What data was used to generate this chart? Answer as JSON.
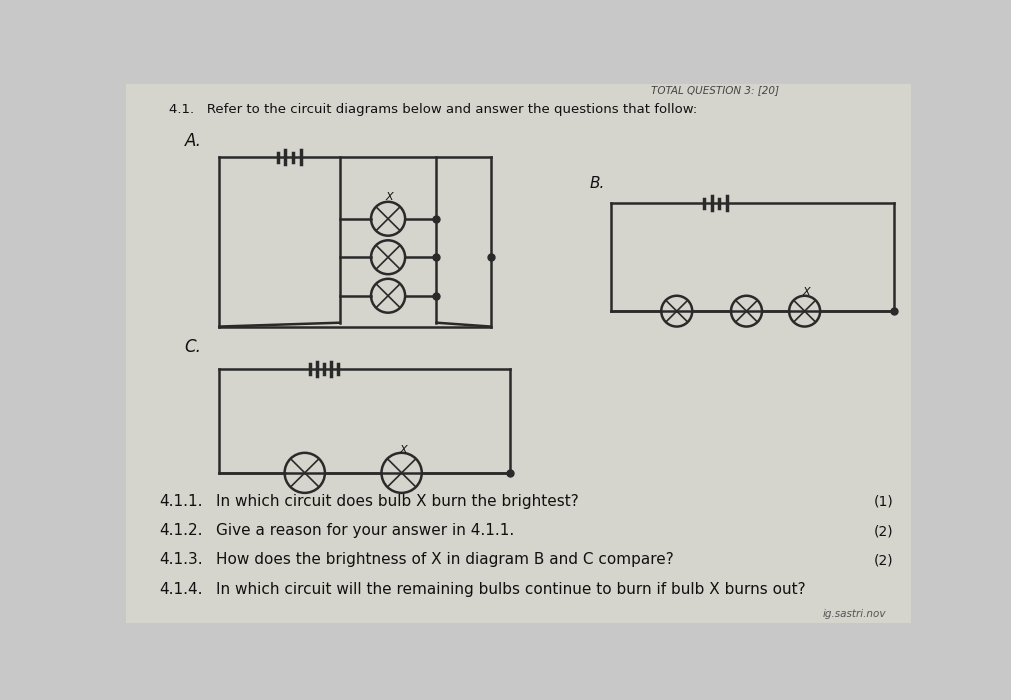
{
  "bg_color": "#c8c8c8",
  "paper_color": "#e8e8e0",
  "title_text": "TOTAL QUESTION 3: [20]",
  "header_line1": "4.1.   Refer to the circuit diagrams below and answer the questions that follow:",
  "circuit_A_label": "A.",
  "circuit_B_label": "B.",
  "circuit_C_label": "C.",
  "questions": [
    {
      "num": "4.1.1.",
      "text": "In which circuit does bulb X burn the brightest?",
      "mark": "(1)"
    },
    {
      "num": "4.1.2.",
      "text": "Give a reason for your answer in 4.1.1.",
      "mark": "(2)"
    },
    {
      "num": "4.1.3.",
      "text": "How does the brightness of X in diagram B and C compare?",
      "mark": "(2)"
    },
    {
      "num": "4.1.4.",
      "text": "In which circuit will the remaining bulbs continue to burn if bulb X burns out?",
      "mark": ""
    }
  ],
  "footer": "ig.sastri.nov",
  "line_color": "#2a2a2a",
  "text_color": "#111111",
  "header_color": "#222222"
}
